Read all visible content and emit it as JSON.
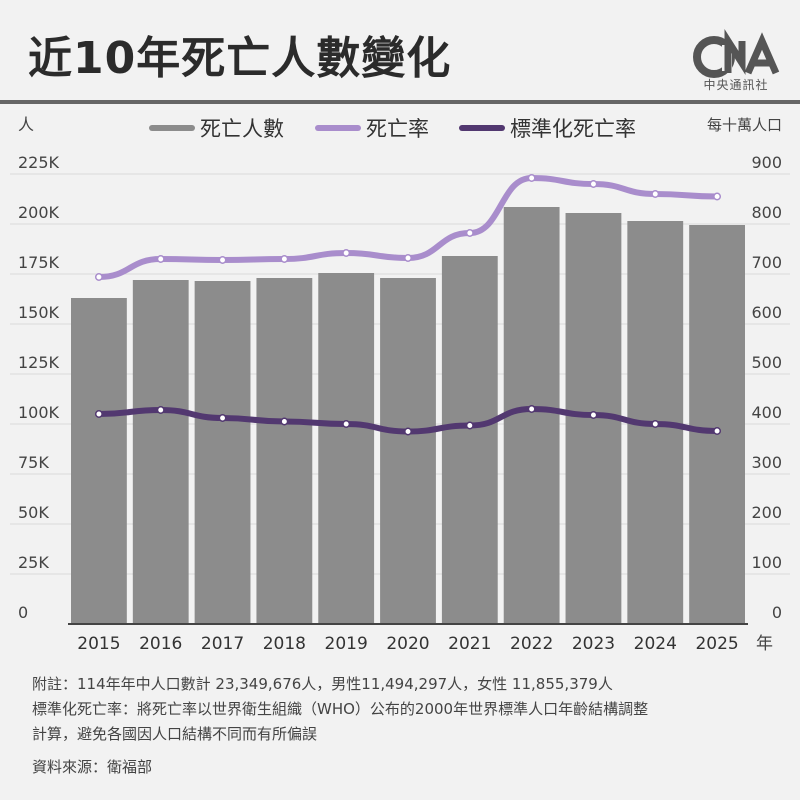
{
  "header": {
    "title": "近10年死亡人數變化",
    "logo_text": "中央通訊社"
  },
  "colors": {
    "bar": "#8c8c8c",
    "rate": "#a98dcc",
    "std_rate": "#523870",
    "background": "#f2f2f2",
    "grid": "#d9d9d9"
  },
  "chart_data": {
    "type": "bar",
    "left_unit": "人",
    "right_unit": "每十萬人口",
    "x_unit": "年",
    "categories": [
      "2015",
      "2016",
      "2017",
      "2018",
      "2019",
      "2020",
      "2021",
      "2022",
      "2023",
      "2024",
      "2025"
    ],
    "y_left_ticks": [
      "0",
      "25K",
      "50K",
      "75K",
      "100K",
      "125K",
      "150K",
      "175K",
      "200K",
      "225K"
    ],
    "y_right_ticks": [
      "0",
      "100",
      "200",
      "300",
      "400",
      "500",
      "600",
      "700",
      "800",
      "900"
    ],
    "ylim_left": [
      0,
      225000
    ],
    "ylim_right": [
      0,
      900
    ],
    "legend_position": "top",
    "grid": true,
    "series": [
      {
        "name": "死亡人數",
        "kind": "bar",
        "axis": "left",
        "values": [
          163000,
          172000,
          171500,
          173000,
          175500,
          173000,
          184000,
          208500,
          205500,
          201500,
          199500
        ]
      },
      {
        "name": "死亡率",
        "kind": "line",
        "axis": "right",
        "values": [
          694,
          730,
          728,
          730,
          742,
          732,
          782,
          892,
          880,
          860,
          855
        ]
      },
      {
        "name": "標準化死亡率",
        "kind": "line",
        "axis": "right",
        "values": [
          420,
          428,
          412,
          405,
          400,
          385,
          397,
          430,
          418,
          400,
          386
        ]
      }
    ]
  },
  "notes": {
    "line1": "附註：114年年中人口數計 23,349,676人，男性11,494,297人，女性 11,855,379人",
    "line2": "標準化死亡率：將死亡率以世界衛生組織（WHO）公布的2000年世界標準人口年齡結構調整",
    "line3": "計算，避免各國因人口結構不同而有所偏誤",
    "source": "資料來源：衛福部"
  }
}
